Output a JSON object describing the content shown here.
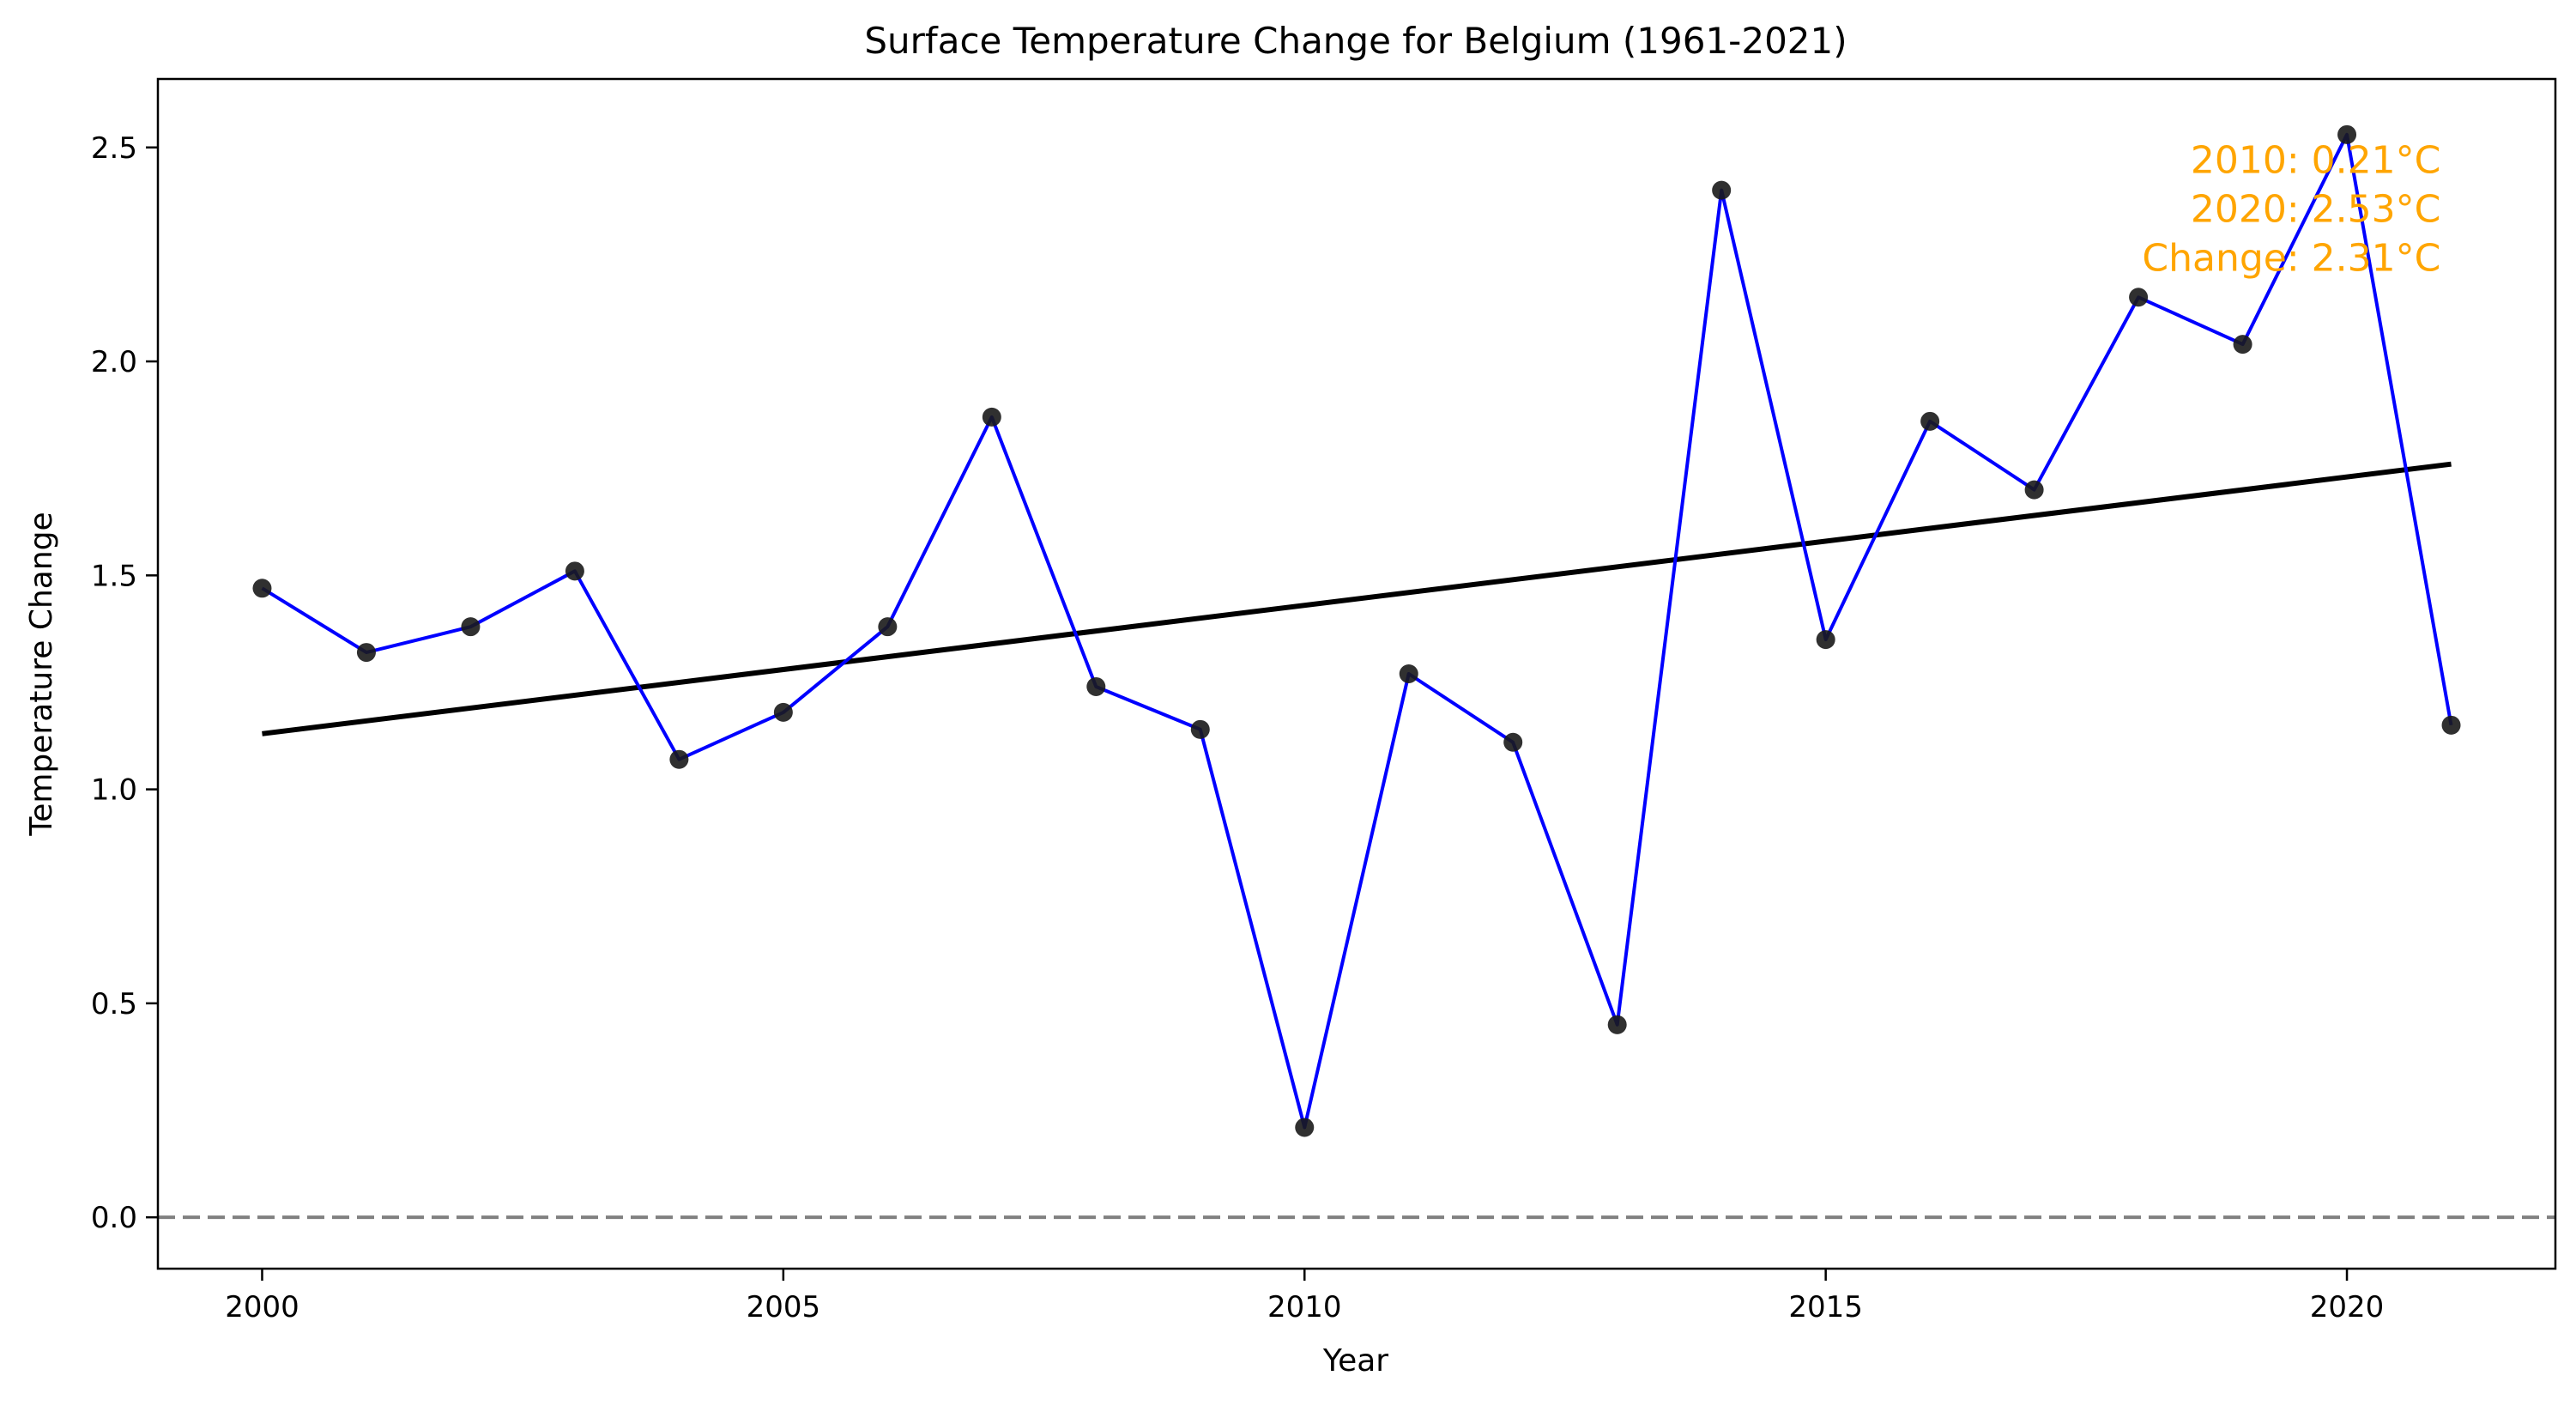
{
  "chart_data": {
    "type": "line",
    "title": "Surface Temperature Change for Belgium (1961-2021)",
    "xlabel": "Year",
    "ylabel": "Temperature Change",
    "xlim": [
      1999,
      2022
    ],
    "ylim": [
      -0.12,
      2.66
    ],
    "xticks": [
      2000,
      2005,
      2010,
      2015,
      2020
    ],
    "yticks": [
      0.0,
      0.5,
      1.0,
      1.5,
      2.0,
      2.5
    ],
    "ytick_labels": [
      "0.0",
      "0.5",
      "1.0",
      "1.5",
      "2.0",
      "2.5"
    ],
    "grid": false,
    "x": [
      2000,
      2001,
      2002,
      2003,
      2004,
      2005,
      2006,
      2007,
      2008,
      2009,
      2010,
      2011,
      2012,
      2013,
      2014,
      2015,
      2016,
      2017,
      2018,
      2019,
      2020,
      2021
    ],
    "series": [
      {
        "values": [
          1.47,
          1.32,
          1.38,
          1.51,
          1.07,
          1.18,
          1.38,
          1.87,
          1.24,
          1.14,
          0.21,
          1.27,
          1.11,
          0.45,
          2.4,
          1.35,
          1.86,
          1.7,
          2.15,
          2.04,
          2.53,
          1.15
        ],
        "color": "#0000ff",
        "marker_color": "#1a1a1a"
      }
    ],
    "trend_line": {
      "x": [
        2000,
        2021
      ],
      "y": [
        1.13,
        1.76
      ],
      "color": "#000000"
    },
    "reference_line": {
      "y": 0.0,
      "color": "#808080",
      "style": "dashed"
    },
    "annotation": {
      "lines": [
        "2010: 0.21°C",
        "2020: 2.53°C",
        "Change: 2.31°C"
      ],
      "color": "#ffa500",
      "placement": "top-right"
    }
  }
}
